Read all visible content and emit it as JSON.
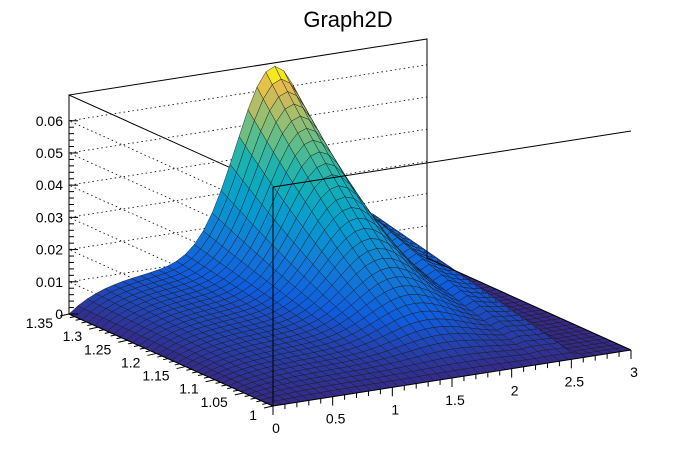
{
  "chart_data": {
    "type": "surface",
    "title": "Graph2D",
    "xlabel": "",
    "ylabel": "",
    "zlabel": "",
    "xlim": [
      0,
      3
    ],
    "ylim": [
      1,
      1.35
    ],
    "zlim": [
      0,
      0.068
    ],
    "x_ticks": [
      "0",
      "0.5",
      "1",
      "1.5",
      "2",
      "2.5",
      "3"
    ],
    "y_ticks": [
      "1",
      "1.05",
      "1.1",
      "1.15",
      "1.2",
      "1.25",
      "1.3",
      "1.35"
    ],
    "z_ticks": [
      "0",
      "0.01",
      "0.02",
      "0.03",
      "0.04",
      "0.05",
      "0.06"
    ],
    "palette": "kBird (blue to yellow)",
    "grid": true,
    "surface_peak": {
      "x": 1.7,
      "y": 1.35,
      "z": 0.065
    },
    "surface_shape": "ridge rising along y toward 1.35, peaked near x=1.6–1.9; low plateau ~0.01 at small x; drops to 0 for x above ~2.55"
  }
}
